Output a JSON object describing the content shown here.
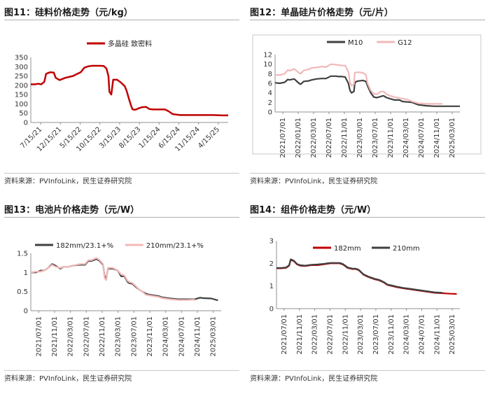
{
  "colors": {
    "red": "#c00000",
    "pink": "#f2b8b8",
    "dark": "#404040",
    "axis": "#909090"
  },
  "chart_data": [
    {
      "type": "line",
      "title": "图11：硅料价格走势（元/kg）",
      "source": "资料来源：PVInfoLink，民生证券研究院",
      "ylim": [
        0,
        350
      ],
      "yticks": [
        0,
        50,
        100,
        150,
        200,
        250,
        300,
        350
      ],
      "xticks": [
        "7/15/21",
        "12/15/21",
        "5/15/22",
        "10/15/22",
        "3/15/23",
        "8/15/23",
        "1/15/24",
        "6/15/24",
        "11/15/24",
        "4/15/25"
      ],
      "xrange": [
        0,
        10.3
      ],
      "series": [
        {
          "name": "多晶硅 致密料",
          "color": "#c00000",
          "width": 2.5,
          "x": [
            0,
            0.2,
            0.4,
            0.55,
            0.6,
            0.7,
            0.8,
            1.0,
            1.2,
            1.3,
            1.5,
            1.8,
            2.0,
            2.2,
            2.4,
            2.6,
            2.8,
            3.0,
            3.2,
            3.4,
            3.6,
            3.8,
            3.95,
            4.05,
            4.1,
            4.2,
            4.3,
            4.5,
            4.7,
            4.9,
            5.0,
            5.1,
            5.2,
            5.3,
            5.4,
            5.5,
            5.6,
            5.8,
            6.0,
            6.2,
            6.4,
            6.6,
            6.8,
            7.0,
            7.2,
            7.4,
            7.6,
            7.8,
            8.0,
            8.5,
            9.0,
            9.5,
            10.0,
            10.3
          ],
          "y": [
            205,
            205,
            208,
            205,
            210,
            218,
            262,
            270,
            268,
            240,
            228,
            240,
            245,
            250,
            260,
            270,
            295,
            302,
            305,
            305,
            305,
            304,
            290,
            250,
            165,
            150,
            230,
            230,
            215,
            195,
            170,
            135,
            100,
            72,
            68,
            70,
            75,
            82,
            84,
            72,
            70,
            70,
            70,
            70,
            60,
            45,
            42,
            40,
            40,
            40,
            40,
            40,
            38,
            38
          ]
        }
      ]
    },
    {
      "type": "line",
      "title": "图12：单晶硅片价格走势（元/片）",
      "source": "资料来源：PVInfoLink，民生证券研究院",
      "ylim": [
        0,
        12
      ],
      "yticks": [
        0,
        2,
        4,
        6,
        8,
        10,
        12
      ],
      "xticks": [
        "2021/07/01",
        "2022/01/01",
        "2022/03/01",
        "2022/07/01",
        "2022/11/01",
        "2023/03/01",
        "2023/07/01",
        "2023/11/01",
        "2024/03/01",
        "2024/07/01",
        "2024/11/01",
        "2025/03/01"
      ],
      "xrange": [
        0,
        11.6
      ],
      "series": [
        {
          "name": "M10",
          "color": "#404040",
          "width": 2.2,
          "x": [
            0,
            0.3,
            0.6,
            0.8,
            0.9,
            1.2,
            1.5,
            1.6,
            1.8,
            2.1,
            2.3,
            2.6,
            2.9,
            3.2,
            3.5,
            3.8,
            4.0,
            4.2,
            4.4,
            4.6,
            4.7,
            4.8,
            4.95,
            5.0,
            5.1,
            5.3,
            5.5,
            5.7,
            5.8,
            6.0,
            6.2,
            6.4,
            6.6,
            6.8,
            7.0,
            7.2,
            7.5,
            7.8,
            8.0,
            8.3,
            8.6,
            9.0,
            9.5,
            10.0,
            10.5,
            11.0,
            11.6
          ],
          "y": [
            6.1,
            6.0,
            6.2,
            6.8,
            6.7,
            6.9,
            6.0,
            5.8,
            6.4,
            6.5,
            6.7,
            6.9,
            7.0,
            7.0,
            7.5,
            7.5,
            7.4,
            7.4,
            7.3,
            6.0,
            4.5,
            4.0,
            4.3,
            6.0,
            6.4,
            6.5,
            6.6,
            6.4,
            5.5,
            4.0,
            3.1,
            3.0,
            3.2,
            3.4,
            3.0,
            2.8,
            2.5,
            2.5,
            2.2,
            2.1,
            2.0,
            1.5,
            1.3,
            1.2,
            1.2,
            1.2,
            1.2
          ]
        },
        {
          "name": "G12",
          "color": "#f2b8b8",
          "width": 2.2,
          "x": [
            0,
            0.3,
            0.6,
            0.8,
            0.9,
            1.2,
            1.5,
            1.6,
            1.8,
            2.1,
            2.3,
            2.6,
            2.9,
            3.2,
            3.5,
            3.8,
            4.0,
            4.2,
            4.4,
            4.6,
            4.7,
            4.8,
            4.95,
            5.0,
            5.1,
            5.3,
            5.5,
            5.7,
            5.8,
            6.0,
            6.2,
            6.4,
            6.6,
            6.8,
            7.0,
            7.2,
            7.5,
            7.8,
            8.0,
            8.3,
            8.6,
            9.0,
            9.5,
            10.0,
            10.5
          ],
          "y": [
            7.8,
            7.7,
            8.0,
            8.8,
            8.6,
            9.0,
            8.2,
            8.0,
            8.7,
            8.9,
            9.2,
            9.3,
            9.5,
            9.4,
            10.0,
            9.9,
            9.8,
            9.7,
            9.7,
            8.4,
            6.2,
            5.5,
            5.8,
            8.2,
            8.3,
            8.3,
            8.2,
            7.8,
            6.0,
            4.5,
            3.8,
            3.7,
            4.2,
            4.3,
            3.7,
            3.4,
            3.1,
            2.9,
            2.8,
            2.6,
            2.2,
            1.8,
            1.7,
            1.7,
            1.7
          ]
        }
      ]
    },
    {
      "type": "line",
      "title": "图13：电池片价格走势（元/W）",
      "source": "资料来源：PVInfoLink，民生证券研究院",
      "ylim": [
        0,
        1.5
      ],
      "yticks": [
        0,
        0.5,
        1,
        1.5
      ],
      "yticklabels": [
        "0",
        "0.5",
        "1",
        "1.5"
      ],
      "xticks": [
        "2021/07/01",
        "2021/11/01",
        "2022/03/01",
        "2022/07/01",
        "2022/11/01",
        "2023/03/01",
        "2023/07/01",
        "2023/11/01",
        "2024/03/01",
        "2024/07/01",
        "2024/11/01",
        "2025/03/01"
      ],
      "xrange": [
        0,
        11.6
      ],
      "series": [
        {
          "name": "182mm/23.1+%",
          "color": "#404040",
          "width": 2.2,
          "x": [
            0,
            0.3,
            0.6,
            0.8,
            1.0,
            1.3,
            1.5,
            1.8,
            2.0,
            2.3,
            2.6,
            3.0,
            3.3,
            3.5,
            3.7,
            4.0,
            4.2,
            4.4,
            4.5,
            4.6,
            4.7,
            4.8,
            4.9,
            5.0,
            5.3,
            5.5,
            5.7,
            5.9,
            6.0,
            6.2,
            6.4,
            6.6,
            6.8,
            7.0,
            7.2,
            7.5,
            7.8,
            8.0,
            8.5,
            9.0,
            9.5,
            10.0,
            10.3,
            10.5,
            11.0,
            11.4
          ],
          "y": [
            1.0,
            1.0,
            1.05,
            1.05,
            1.1,
            1.22,
            1.18,
            1.1,
            1.15,
            1.15,
            1.18,
            1.2,
            1.2,
            1.3,
            1.3,
            1.35,
            1.3,
            1.2,
            0.9,
            0.85,
            1.1,
            1.1,
            1.1,
            1.1,
            1.05,
            0.9,
            0.9,
            0.75,
            0.72,
            0.7,
            0.62,
            0.55,
            0.5,
            0.45,
            0.42,
            0.4,
            0.38,
            0.35,
            0.32,
            0.3,
            0.3,
            0.3,
            0.34,
            0.33,
            0.32,
            0.27
          ]
        },
        {
          "name": "210mm/23.1+%",
          "color": "#f2b8b8",
          "width": 2.2,
          "x": [
            0,
            0.3,
            0.6,
            0.8,
            1.0,
            1.3,
            1.5,
            1.8,
            2.0,
            2.3,
            2.6,
            3.0,
            3.3,
            3.5,
            3.7,
            4.0,
            4.2,
            4.4,
            4.5,
            4.6,
            4.7,
            4.8,
            4.9,
            5.0,
            5.3,
            5.5,
            5.7,
            5.9,
            6.0,
            6.2,
            6.4,
            6.6,
            6.8,
            7.0,
            7.2,
            7.5,
            7.8,
            8.0,
            8.5,
            9.0,
            9.5,
            10.0
          ],
          "y": [
            1.0,
            1.02,
            1.02,
            1.05,
            1.1,
            1.2,
            1.15,
            1.12,
            1.15,
            1.15,
            1.18,
            1.22,
            1.22,
            1.32,
            1.32,
            1.38,
            1.32,
            1.22,
            0.85,
            0.8,
            1.12,
            1.12,
            1.12,
            1.12,
            1.05,
            0.95,
            0.92,
            0.78,
            0.75,
            0.72,
            0.64,
            0.55,
            0.5,
            0.42,
            0.4,
            0.38,
            0.36,
            0.33,
            0.3,
            0.28,
            0.28,
            0.29
          ]
        }
      ]
    },
    {
      "type": "line",
      "title": "图14：组件价格走势（元/W）",
      "source": "资料来源：PVInfoLink，民生证券研究院",
      "ylim": [
        0,
        3
      ],
      "yticks": [
        0,
        1,
        2,
        3
      ],
      "xticks": [
        "2021/07/01",
        "2021/11/01",
        "2022/03/01",
        "2022/07/01",
        "2022/11/01",
        "2023/03/01",
        "2023/07/01",
        "2023/11/01",
        "2024/03/01",
        "2024/07/01",
        "2024/11/01",
        "2025/03/01"
      ],
      "xrange": [
        0,
        11.6
      ],
      "series": [
        {
          "name": "182mm",
          "color": "#c00000",
          "width": 2.2,
          "x": [
            0,
            0.3,
            0.6,
            0.8,
            0.9,
            1.1,
            1.3,
            1.5,
            1.8,
            2.2,
            2.6,
            3.0,
            3.4,
            3.8,
            4.0,
            4.2,
            4.5,
            4.8,
            5.0,
            5.2,
            5.5,
            5.8,
            6.0,
            6.2,
            6.5,
            6.8,
            7.0,
            7.3,
            7.6,
            8.0,
            8.5,
            9.0,
            9.5,
            10.0,
            10.5,
            11.0,
            11.4
          ],
          "y": [
            1.78,
            1.78,
            1.8,
            1.9,
            2.15,
            2.1,
            1.95,
            1.9,
            1.88,
            1.92,
            1.92,
            1.96,
            2.0,
            2.0,
            2.0,
            1.95,
            1.8,
            1.75,
            1.75,
            1.7,
            1.5,
            1.4,
            1.35,
            1.3,
            1.25,
            1.15,
            1.05,
            1.0,
            0.95,
            0.9,
            0.85,
            0.8,
            0.75,
            0.7,
            0.68,
            0.66,
            0.65
          ]
        },
        {
          "name": "210mm",
          "color": "#404040",
          "width": 2.2,
          "x": [
            0,
            0.3,
            0.6,
            0.8,
            0.9,
            1.1,
            1.3,
            1.5,
            1.8,
            2.2,
            2.6,
            3.0,
            3.4,
            3.8,
            4.0,
            4.2,
            4.5,
            4.8,
            5.0,
            5.2,
            5.5,
            5.8,
            6.0,
            6.2,
            6.5,
            6.8,
            7.0,
            7.3,
            7.6,
            8.0,
            8.5,
            9.0,
            9.5,
            10.0,
            10.5
          ],
          "y": [
            1.8,
            1.8,
            1.82,
            1.92,
            2.18,
            2.12,
            1.97,
            1.92,
            1.9,
            1.94,
            1.95,
            1.98,
            2.02,
            2.02,
            2.02,
            1.97,
            1.82,
            1.77,
            1.77,
            1.72,
            1.52,
            1.42,
            1.37,
            1.32,
            1.27,
            1.17,
            1.07,
            1.02,
            0.97,
            0.92,
            0.87,
            0.82,
            0.77,
            0.72,
            0.7
          ]
        }
      ]
    }
  ]
}
